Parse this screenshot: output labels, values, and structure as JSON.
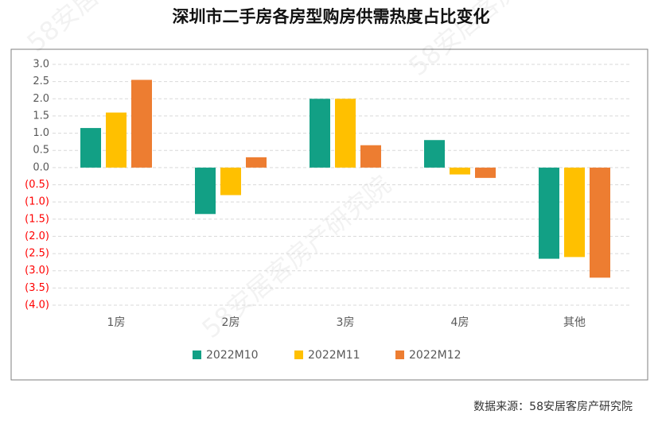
{
  "chart_data": {
    "type": "bar",
    "title": "深圳市二手房各房型购房供需热度占比变化",
    "source": "数据来源：58安居客房产研究院",
    "watermark": "58安居客房产研究院",
    "categories": [
      "1房",
      "2房",
      "3房",
      "4房",
      "其他"
    ],
    "series": [
      {
        "name": "2022M10",
        "color": "#12a085",
        "values": [
          1.15,
          -1.35,
          2.0,
          0.8,
          -2.65
        ]
      },
      {
        "name": "2022M11",
        "color": "#ffc000",
        "values": [
          1.6,
          -0.8,
          2.0,
          -0.2,
          -2.6
        ]
      },
      {
        "name": "2022M12",
        "color": "#ed7d31",
        "values": [
          2.55,
          0.3,
          0.65,
          -0.3,
          -3.2
        ]
      }
    ],
    "ylim": [
      -4.0,
      3.0
    ],
    "yticks": [
      {
        "value": 3.0,
        "label": "3.0"
      },
      {
        "value": 2.5,
        "label": "2.5"
      },
      {
        "value": 2.0,
        "label": "2.0"
      },
      {
        "value": 1.5,
        "label": "1.5"
      },
      {
        "value": 1.0,
        "label": "1.0"
      },
      {
        "value": 0.5,
        "label": "0.5"
      },
      {
        "value": 0.0,
        "label": "0.0"
      },
      {
        "value": -0.5,
        "label": "(0.5)"
      },
      {
        "value": -1.0,
        "label": "(1.0)"
      },
      {
        "value": -1.5,
        "label": "(1.5)"
      },
      {
        "value": -2.0,
        "label": "(2.0)"
      },
      {
        "value": -2.5,
        "label": "(2.5)"
      },
      {
        "value": -3.0,
        "label": "(3.0)"
      },
      {
        "value": -3.5,
        "label": "(3.5)"
      },
      {
        "value": -4.0,
        "label": "(4.0)"
      }
    ],
    "negative_tick_color": "#ff0000",
    "grid": true,
    "legend": "bottom"
  }
}
